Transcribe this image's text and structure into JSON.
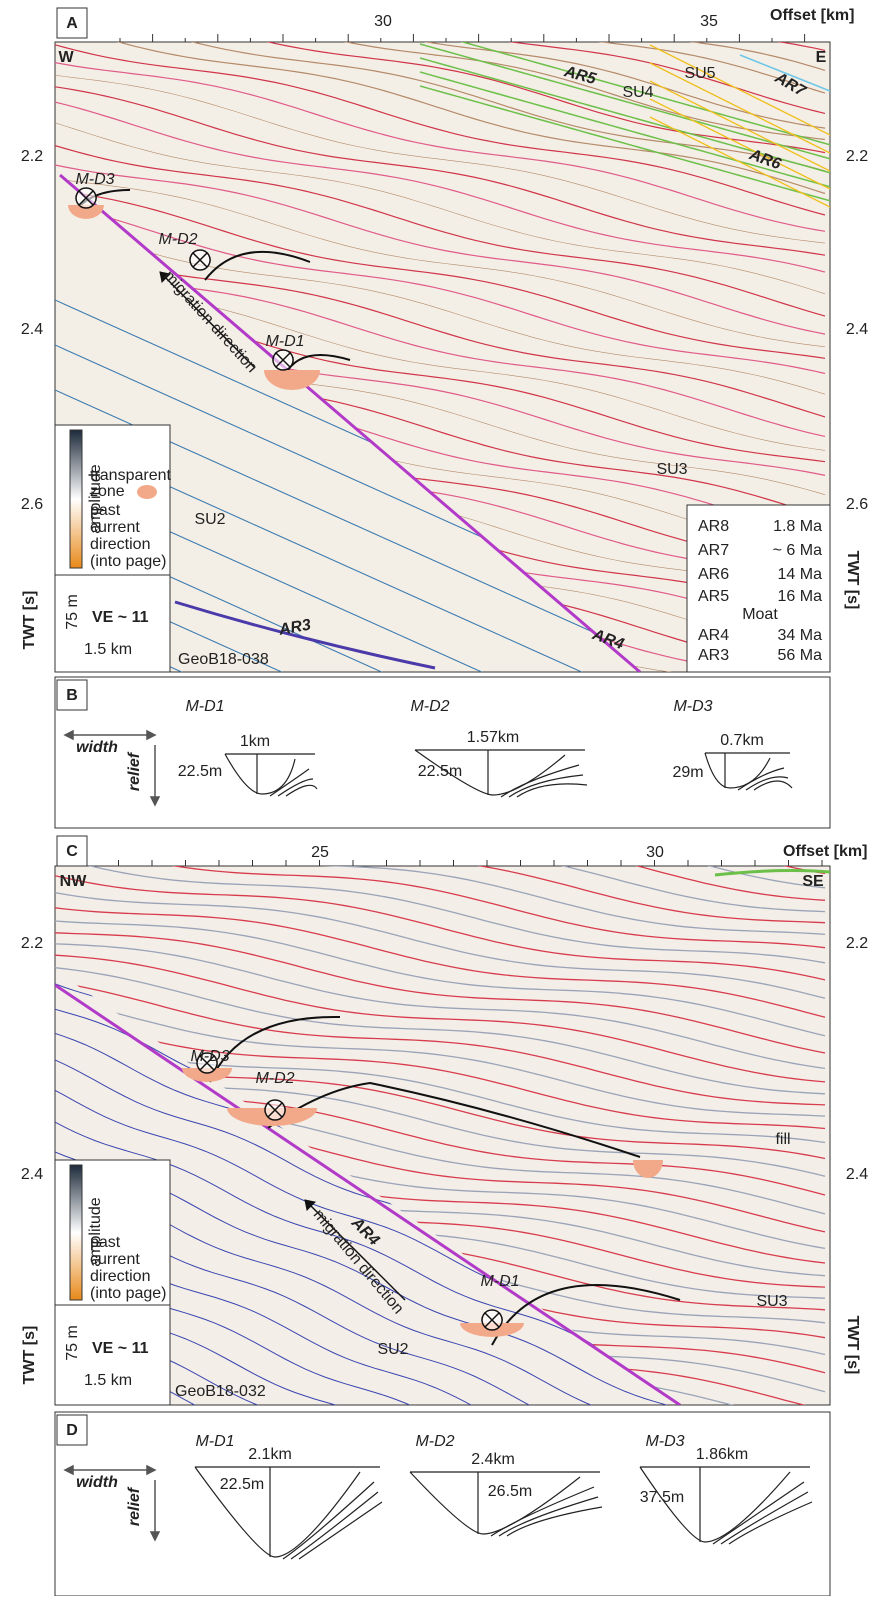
{
  "panel_a": {
    "label": "A",
    "offset_label": "Offset [km]",
    "x_ticks": [
      "30",
      "35"
    ],
    "y_ticks": [
      "2.2",
      "2.4",
      "2.6"
    ],
    "y_axis_label": "TWT [s]",
    "left_end": "W",
    "right_end": "E",
    "units": [
      "SU5",
      "SU4",
      "SU3",
      "SU2"
    ],
    "horizons": [
      "AR5",
      "AR7",
      "AR6",
      "AR3",
      "AR4"
    ],
    "features": [
      "M-D3",
      "M-D2",
      "M-D1"
    ],
    "arrow_label": "migration direction",
    "profile": "GeoB18-038",
    "legend": {
      "amplitude": "amplitude",
      "transparent": [
        "transparent",
        "zone"
      ],
      "current": [
        "past",
        "current",
        "direction",
        "(into page)"
      ]
    },
    "scale": {
      "vertical": "75 m",
      "ve": "VE ~ 11",
      "horizontal": "1.5 km"
    },
    "ages": [
      {
        "name": "AR8",
        "age": "1.8 Ma",
        "color": "#222222"
      },
      {
        "name": "AR7",
        "age": "~ 6 Ma",
        "color": "#6ec6e6"
      },
      {
        "name": "AR6",
        "age": "14 Ma",
        "color": "#f0c020"
      },
      {
        "name": "AR5",
        "age": "16 Ma",
        "color": "#6cc04a"
      },
      {
        "name": "AR4",
        "age": "34 Ma",
        "color": "#e0409a"
      },
      {
        "name": "AR3",
        "age": "56 Ma",
        "color": "#4a3aaa"
      }
    ],
    "moat": "Moat"
  },
  "panel_b": {
    "label": "B",
    "width": "width",
    "relief": "relief",
    "items": [
      {
        "name": "M-D1",
        "width": "1km",
        "relief": "22.5m"
      },
      {
        "name": "M-D2",
        "width": "1.57km",
        "relief": "22.5m"
      },
      {
        "name": "M-D3",
        "width": "0.7km",
        "relief": "29m"
      }
    ]
  },
  "panel_c": {
    "label": "C",
    "offset_label": "Offset [km]",
    "x_ticks": [
      "25",
      "30"
    ],
    "y_ticks": [
      "2.2",
      "2.4"
    ],
    "y_axis_label": "TWT [s]",
    "left_end": "NW",
    "right_end": "SE",
    "units": [
      "SU3",
      "SU2"
    ],
    "horizons": [
      "AR4"
    ],
    "features": [
      "M-D3",
      "M-D2",
      "M-D1"
    ],
    "fill_label": "fill",
    "arrow_label": "migration direction",
    "profile": "GeoB18-032",
    "legend": {
      "amplitude": "amplitude",
      "current": [
        "past",
        "current",
        "direction",
        "(into page)"
      ]
    },
    "scale": {
      "vertical": "75 m",
      "ve": "VE ~ 11",
      "horizontal": "1.5 km"
    }
  },
  "panel_d": {
    "label": "D",
    "width": "width",
    "relief": "relief",
    "items": [
      {
        "name": "M-D1",
        "width": "2.1km",
        "relief": "22.5m"
      },
      {
        "name": "M-D2",
        "width": "2.4km",
        "relief": "26.5m"
      },
      {
        "name": "M-D3",
        "width": "1.86km",
        "relief": "37.5m"
      }
    ]
  }
}
